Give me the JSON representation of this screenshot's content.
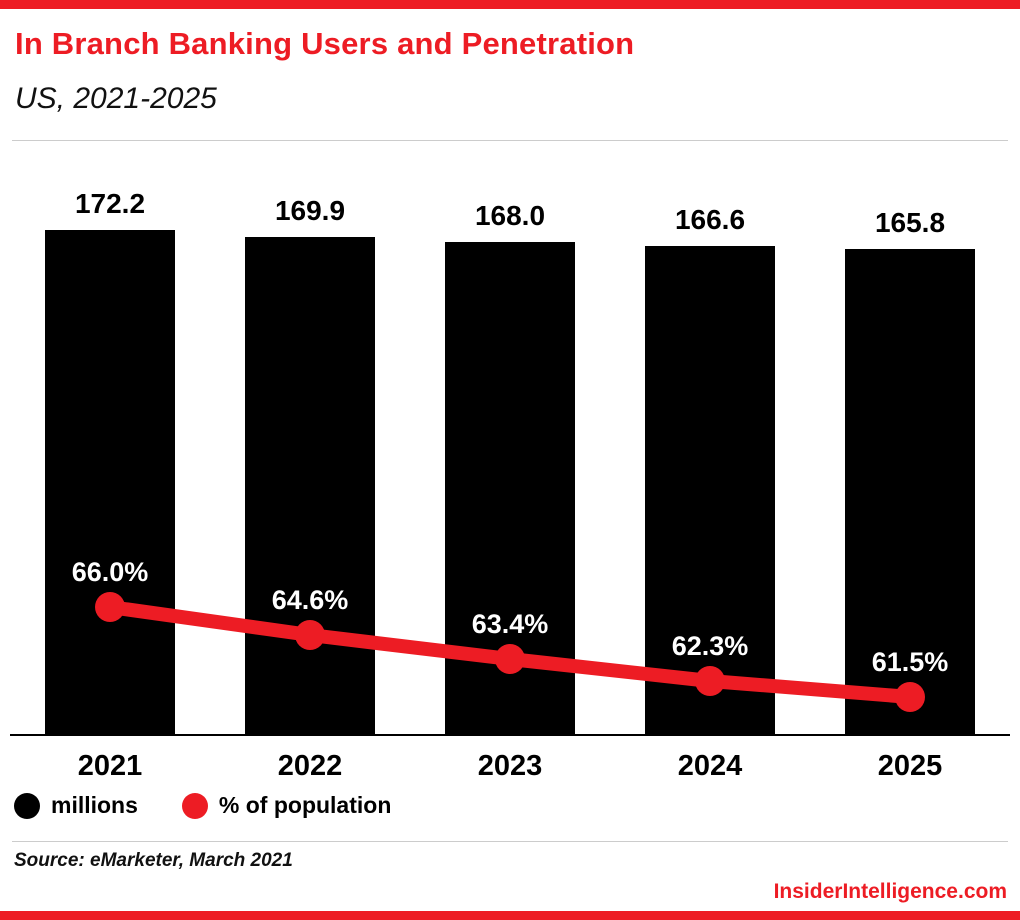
{
  "colors": {
    "red": "#ed1c24",
    "black": "#000000",
    "divider": "#cccccc"
  },
  "header": {
    "title": "In Branch Banking Users and Penetration",
    "subtitle": "US, 2021-2025"
  },
  "chart_data": {
    "type": "bar",
    "combo": "bar+line",
    "title": "In Branch Banking Users and Penetration",
    "subtitle": "US, 2021-2025",
    "categories": [
      "2021",
      "2022",
      "2023",
      "2024",
      "2025"
    ],
    "series": [
      {
        "name": "millions",
        "type": "bar",
        "color": "#000000",
        "values": [
          172.2,
          169.9,
          168.0,
          166.6,
          165.8
        ],
        "labels": [
          "172.2",
          "169.9",
          "168.0",
          "166.6",
          "165.8"
        ]
      },
      {
        "name": "% of population",
        "type": "line",
        "color": "#ed1c24",
        "values": [
          66.0,
          64.6,
          63.4,
          62.3,
          61.5
        ],
        "labels": [
          "66.0%",
          "64.6%",
          "63.4%",
          "62.3%",
          "61.5%"
        ]
      }
    ],
    "xlabel": "",
    "ylabel": "",
    "bar_ylim": [
      0,
      175
    ],
    "grid": false,
    "legend_position": "bottom-left"
  },
  "legend": [
    {
      "label": "millions",
      "color": "#000000"
    },
    {
      "label": "% of population",
      "color": "#ed1c24"
    }
  ],
  "source": "Source: eMarketer, March 2021",
  "footer": {
    "site": "InsiderIntelligence.com"
  }
}
